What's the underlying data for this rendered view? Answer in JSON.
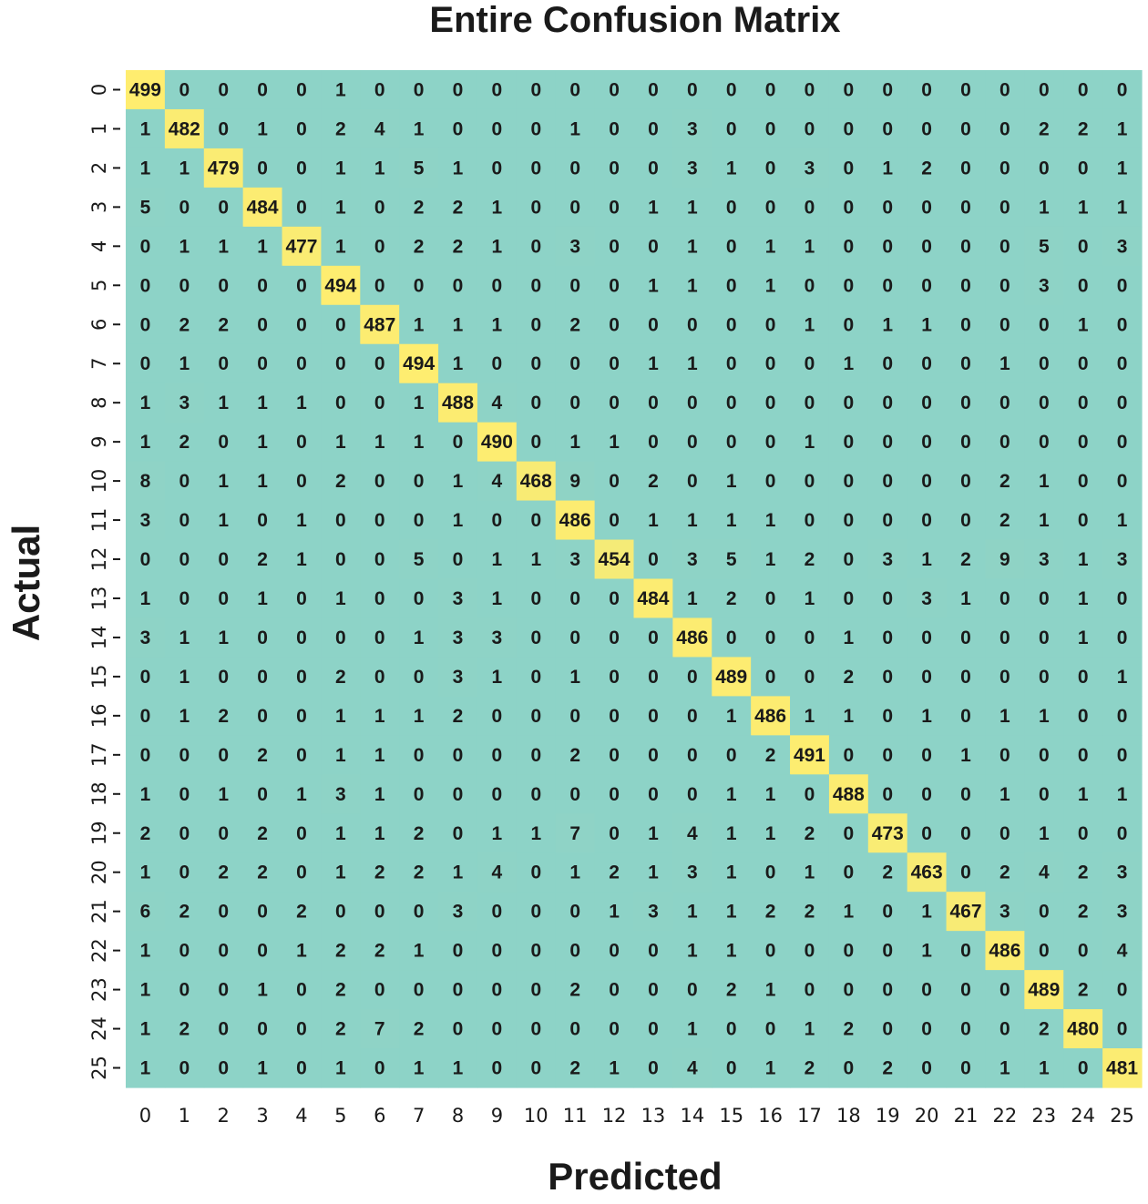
{
  "chart_data": {
    "type": "heatmap",
    "title": "Entire Confusion Matrix",
    "xlabel": "Predicted",
    "ylabel": "Actual",
    "x_ticks": [
      "0",
      "1",
      "2",
      "3",
      "4",
      "5",
      "6",
      "7",
      "8",
      "9",
      "10",
      "11",
      "12",
      "13",
      "14",
      "15",
      "16",
      "17",
      "18",
      "19",
      "20",
      "21",
      "22",
      "23",
      "24",
      "25"
    ],
    "y_ticks": [
      "0",
      "1",
      "2",
      "3",
      "4",
      "5",
      "6",
      "7",
      "8",
      "9",
      "10",
      "11",
      "12",
      "13",
      "14",
      "15",
      "16",
      "17",
      "18",
      "19",
      "20",
      "21",
      "22",
      "23",
      "24",
      "25"
    ],
    "values": [
      [
        499,
        0,
        0,
        0,
        0,
        1,
        0,
        0,
        0,
        0,
        0,
        0,
        0,
        0,
        0,
        0,
        0,
        0,
        0,
        0,
        0,
        0,
        0,
        0,
        0,
        0
      ],
      [
        1,
        482,
        0,
        1,
        0,
        2,
        4,
        1,
        0,
        0,
        0,
        1,
        0,
        0,
        3,
        0,
        0,
        0,
        0,
        0,
        0,
        0,
        0,
        2,
        2,
        1
      ],
      [
        1,
        1,
        479,
        0,
        0,
        1,
        1,
        5,
        1,
        0,
        0,
        0,
        0,
        0,
        3,
        1,
        0,
        3,
        0,
        1,
        2,
        0,
        0,
        0,
        0,
        1
      ],
      [
        5,
        0,
        0,
        484,
        0,
        1,
        0,
        2,
        2,
        1,
        0,
        0,
        0,
        1,
        1,
        0,
        0,
        0,
        0,
        0,
        0,
        0,
        0,
        1,
        1,
        1
      ],
      [
        0,
        1,
        1,
        1,
        477,
        1,
        0,
        2,
        2,
        1,
        0,
        3,
        0,
        0,
        1,
        0,
        1,
        1,
        0,
        0,
        0,
        0,
        0,
        5,
        0,
        3
      ],
      [
        0,
        0,
        0,
        0,
        0,
        494,
        0,
        0,
        0,
        0,
        0,
        0,
        0,
        1,
        1,
        0,
        1,
        0,
        0,
        0,
        0,
        0,
        0,
        3,
        0,
        0
      ],
      [
        0,
        2,
        2,
        0,
        0,
        0,
        487,
        1,
        1,
        1,
        0,
        2,
        0,
        0,
        0,
        0,
        0,
        1,
        0,
        1,
        1,
        0,
        0,
        0,
        1,
        0
      ],
      [
        0,
        1,
        0,
        0,
        0,
        0,
        0,
        494,
        1,
        0,
        0,
        0,
        0,
        1,
        1,
        0,
        0,
        0,
        1,
        0,
        0,
        0,
        1,
        0,
        0,
        0
      ],
      [
        1,
        3,
        1,
        1,
        1,
        0,
        0,
        1,
        488,
        4,
        0,
        0,
        0,
        0,
        0,
        0,
        0,
        0,
        0,
        0,
        0,
        0,
        0,
        0,
        0,
        0
      ],
      [
        1,
        2,
        0,
        1,
        0,
        1,
        1,
        1,
        0,
        490,
        0,
        1,
        1,
        0,
        0,
        0,
        0,
        1,
        0,
        0,
        0,
        0,
        0,
        0,
        0,
        0
      ],
      [
        8,
        0,
        1,
        1,
        0,
        2,
        0,
        0,
        1,
        4,
        468,
        9,
        0,
        2,
        0,
        1,
        0,
        0,
        0,
        0,
        0,
        0,
        2,
        1,
        0,
        0
      ],
      [
        3,
        0,
        1,
        0,
        1,
        0,
        0,
        0,
        1,
        0,
        0,
        486,
        0,
        1,
        1,
        1,
        1,
        0,
        0,
        0,
        0,
        0,
        2,
        1,
        0,
        1
      ],
      [
        0,
        0,
        0,
        2,
        1,
        0,
        0,
        5,
        0,
        1,
        1,
        3,
        454,
        0,
        3,
        5,
        1,
        2,
        0,
        3,
        1,
        2,
        9,
        3,
        1,
        3
      ],
      [
        1,
        0,
        0,
        1,
        0,
        1,
        0,
        0,
        3,
        1,
        0,
        0,
        0,
        484,
        1,
        2,
        0,
        1,
        0,
        0,
        3,
        1,
        0,
        0,
        1,
        0
      ],
      [
        3,
        1,
        1,
        0,
        0,
        0,
        0,
        1,
        3,
        3,
        0,
        0,
        0,
        0,
        486,
        0,
        0,
        0,
        1,
        0,
        0,
        0,
        0,
        0,
        1,
        0
      ],
      [
        0,
        1,
        0,
        0,
        0,
        2,
        0,
        0,
        3,
        1,
        0,
        1,
        0,
        0,
        0,
        489,
        0,
        0,
        2,
        0,
        0,
        0,
        0,
        0,
        0,
        1
      ],
      [
        0,
        1,
        2,
        0,
        0,
        1,
        1,
        1,
        2,
        0,
        0,
        0,
        0,
        0,
        0,
        1,
        486,
        1,
        1,
        0,
        1,
        0,
        1,
        1,
        0,
        0
      ],
      [
        0,
        0,
        0,
        2,
        0,
        1,
        1,
        0,
        0,
        0,
        0,
        2,
        0,
        0,
        0,
        0,
        2,
        491,
        0,
        0,
        0,
        1,
        0,
        0,
        0,
        0
      ],
      [
        1,
        0,
        1,
        0,
        1,
        3,
        1,
        0,
        0,
        0,
        0,
        0,
        0,
        0,
        0,
        1,
        1,
        0,
        488,
        0,
        0,
        0,
        1,
        0,
        1,
        1
      ],
      [
        2,
        0,
        0,
        2,
        0,
        1,
        1,
        2,
        0,
        1,
        1,
        7,
        0,
        1,
        4,
        1,
        1,
        2,
        0,
        473,
        0,
        0,
        0,
        1,
        0,
        0
      ],
      [
        1,
        0,
        2,
        2,
        0,
        1,
        2,
        2,
        1,
        4,
        0,
        1,
        2,
        1,
        3,
        1,
        0,
        1,
        0,
        2,
        463,
        0,
        2,
        4,
        2,
        3
      ],
      [
        6,
        2,
        0,
        0,
        2,
        0,
        0,
        0,
        3,
        0,
        0,
        0,
        1,
        3,
        1,
        1,
        2,
        2,
        1,
        0,
        1,
        467,
        3,
        0,
        2,
        3
      ],
      [
        1,
        0,
        0,
        0,
        1,
        2,
        2,
        1,
        0,
        0,
        0,
        0,
        0,
        0,
        1,
        1,
        0,
        0,
        0,
        0,
        1,
        0,
        486,
        0,
        0,
        4
      ],
      [
        1,
        0,
        0,
        1,
        0,
        2,
        0,
        0,
        0,
        0,
        0,
        2,
        0,
        0,
        0,
        2,
        1,
        0,
        0,
        0,
        0,
        0,
        0,
        489,
        2,
        0
      ],
      [
        1,
        2,
        0,
        0,
        0,
        2,
        7,
        2,
        0,
        0,
        0,
        0,
        0,
        0,
        1,
        0,
        0,
        1,
        2,
        0,
        0,
        0,
        0,
        2,
        480,
        0
      ],
      [
        1,
        0,
        0,
        1,
        0,
        1,
        0,
        1,
        1,
        0,
        0,
        2,
        1,
        0,
        4,
        0,
        1,
        2,
        0,
        2,
        0,
        0,
        1,
        1,
        0,
        481
      ]
    ],
    "colors": {
      "low": "#8dd3c7",
      "high": "#ffed6f"
    },
    "colorbar": false,
    "grid": false
  }
}
